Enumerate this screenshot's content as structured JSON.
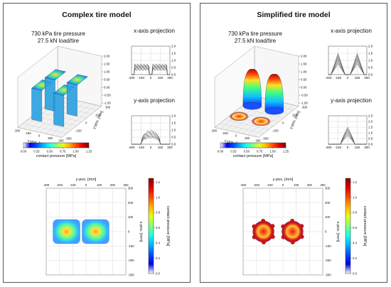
{
  "panels": [
    {
      "id": "complex",
      "title": "Complex tire model",
      "condition_line1": "730 kPa tire pressure",
      "condition_line2": "27.5 kN load/tire",
      "proj_x_title": "x-axis projection",
      "proj_y_title": "y-axis projection",
      "axis_3d_x": "x-pos. [mm]",
      "axis_3d_y": "y-pos. [mm]",
      "colorbar_label": "contact pressure [MPa]",
      "map_top_label": "y-pos. [mm]",
      "map_right_label": "x-pos. [mm]",
      "map_colorbar_label": "contact pressure [MPa]",
      "model": "complex"
    },
    {
      "id": "simplified",
      "title": "Simplified tire model",
      "condition_line1": "730 kPa tire pressure",
      "condition_line2": "27.5 kN load/tire",
      "proj_x_title": "x-axis projection",
      "proj_y_title": "y-axis projection",
      "axis_3d_x": "x-pos. [mm]",
      "axis_3d_y": "y-pos. [mm]",
      "colorbar_label": "contact pressure [MPa]",
      "map_top_label": "y-pos. [mm]",
      "map_right_label": "x-pos. [mm]",
      "map_colorbar_label": "contact pressure [MPa]",
      "model": "simplified"
    }
  ],
  "chart_data": [
    {
      "type": "heatmap",
      "name": "complex-3d-surface",
      "x_ticks": [
        "-300",
        "-150",
        "0",
        "150",
        "300"
      ],
      "y_ticks": [
        "300",
        "150",
        "0",
        "-150",
        "-300"
      ],
      "z_ticks": [
        "2.00",
        "1.50",
        "1.00",
        "0.50",
        "0.00",
        "-0.50",
        "-1.00"
      ],
      "xlabel": "x-pos. [mm]",
      "ylabel": "y-pos. [mm]",
      "zlim": [
        -1.0,
        2.0
      ]
    },
    {
      "type": "line",
      "name": "complex-x-projection",
      "x_ticks": [
        "-300",
        "-150",
        "0",
        "150",
        "300"
      ],
      "y_ticks": [
        "2.0",
        "1.5",
        "1.0",
        "0.5",
        "0.0"
      ],
      "xlim": [
        -300,
        300
      ],
      "ylim": [
        0,
        2.0
      ],
      "peak_approx": 0.8
    },
    {
      "type": "line",
      "name": "complex-y-projection",
      "x_ticks": [
        "-300",
        "-150",
        "0",
        "150",
        "300"
      ],
      "y_ticks": [
        "2.0",
        "1.5",
        "1.0",
        "0.5",
        "0.0"
      ],
      "xlim": [
        -300,
        300
      ],
      "ylim": [
        0,
        2.0
      ],
      "peak_approx": 1.0
    },
    {
      "type": "bar",
      "name": "complex-horizontal-colorbar",
      "ticks": [
        "0.00",
        "0.25",
        "0.50",
        "0.75",
        "1.00",
        "1.25"
      ],
      "label": "contact pressure [MPa]",
      "range": [
        0,
        1.25
      ]
    },
    {
      "type": "heatmap",
      "name": "complex-contact-map",
      "x_ticks": [
        "-300",
        "-200",
        "-100",
        "0",
        "100",
        "200",
        "300"
      ],
      "y_ticks": [
        "300",
        "200",
        "100",
        "0",
        "-100",
        "-200",
        "-300"
      ],
      "xlabel": "y-pos. [mm]",
      "ylabel": "x-pos. [mm]",
      "colorbar_ticks": [
        "1.2",
        "1.0",
        "0.8",
        "0.6",
        "0.4",
        "0.2",
        "0.0"
      ],
      "colorbar_range": [
        0,
        1.25
      ]
    },
    {
      "type": "heatmap",
      "name": "simplified-3d-surface",
      "x_ticks": [
        "-300",
        "-150",
        "0",
        "150",
        "300"
      ],
      "y_ticks": [
        "300",
        "150",
        "0",
        "-150",
        "-300"
      ],
      "z_ticks": [
        "2.00",
        "1.50",
        "1.00",
        "0.50",
        "0.00",
        "-0.50",
        "-1.00"
      ],
      "xlabel": "x-pos. [mm]",
      "ylabel": "y-pos. [mm]",
      "zlim": [
        -1.0,
        2.0
      ]
    },
    {
      "type": "line",
      "name": "simplified-x-projection",
      "x_ticks": [
        "-300",
        "-150",
        "0",
        "150",
        "300"
      ],
      "y_ticks": [
        "2.0",
        "1.5",
        "1.0",
        "0.5",
        "0.0"
      ],
      "xlim": [
        -300,
        300
      ],
      "ylim": [
        0,
        2.0
      ],
      "peak_approx": 1.6
    },
    {
      "type": "line",
      "name": "simplified-y-projection",
      "x_ticks": [
        "-300",
        "-150",
        "0",
        "150",
        "300"
      ],
      "y_ticks": [
        "2.5",
        "2.0",
        "1.5",
        "1.0",
        "0.5",
        "0.0"
      ],
      "xlim": [
        -300,
        300
      ],
      "ylim": [
        0,
        2.5
      ],
      "peak_approx": 1.6
    },
    {
      "type": "bar",
      "name": "simplified-horizontal-colorbar",
      "ticks": [
        "0.00",
        "0.25",
        "0.50",
        "0.75",
        "1.00",
        "1.25"
      ],
      "label": "contact pressure [MPa]",
      "range": [
        0,
        1.25
      ]
    },
    {
      "type": "heatmap",
      "name": "simplified-contact-map",
      "x_ticks": [
        "-300",
        "-200",
        "-100",
        "0",
        "100",
        "200",
        "300"
      ],
      "y_ticks": [
        "300",
        "200",
        "100",
        "0",
        "-100",
        "-200",
        "-300"
      ],
      "xlabel": "y-pos. [mm]",
      "ylabel": "x-pos. [mm]",
      "colorbar_ticks": [
        "1.2",
        "1.0",
        "0.8",
        "0.6",
        "0.4",
        "0.2",
        "0.0"
      ],
      "colorbar_range": [
        0,
        1.25
      ]
    }
  ]
}
